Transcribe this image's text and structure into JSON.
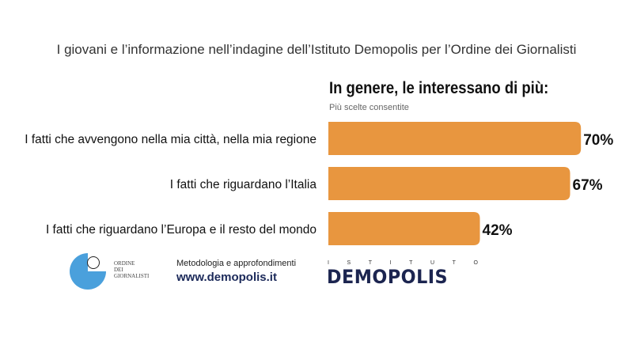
{
  "header": {
    "title": "I giovani e l’informazione nell’indagine dell’Istituto Demopolis per l’Ordine dei Giornalisti"
  },
  "chart_data": {
    "type": "bar",
    "orientation": "horizontal",
    "title": "In genere, le interessano di più:",
    "subtitle": "Più scelte consentite",
    "categories": [
      "I fatti che avvengono nella mia città, nella mia regione",
      "I fatti che riguardano l’Italia",
      "I fatti che riguardano l’Europa e il resto del mondo"
    ],
    "values": [
      70,
      67,
      42
    ],
    "value_labels": [
      "70%",
      "67%",
      "42%"
    ],
    "xlim": [
      0,
      100
    ],
    "grid": false,
    "color": "#E8963F"
  },
  "footer": {
    "odg_logo_text": [
      "ORDINE",
      "DEI",
      "GIORNALISTI"
    ],
    "methodology": "Metodologia e approfondimenti",
    "url": "www.demopolis.it",
    "demopolis_top": [
      "I",
      "S",
      "T",
      "I",
      "T",
      "U",
      "T",
      "O"
    ],
    "demopolis_name": "DEMOPOLIS"
  }
}
